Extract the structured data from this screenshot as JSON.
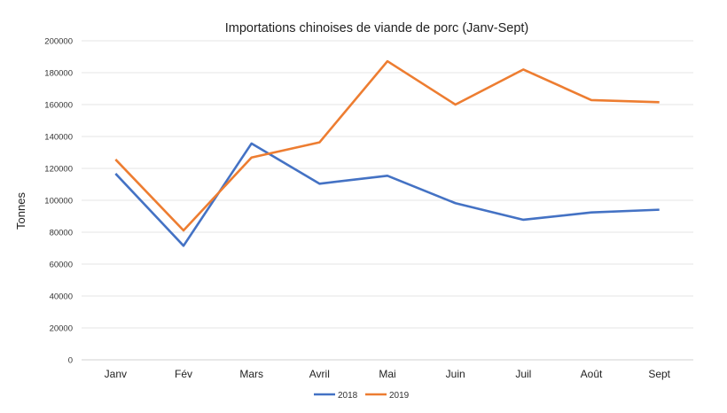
{
  "chart_data": {
    "type": "line",
    "title": "Importations chinoises de viande de porc (Janv-Sept)",
    "xlabel": "",
    "ylabel": "Tonnes",
    "ylim": [
      0,
      200000
    ],
    "yticks": [
      0,
      20000,
      40000,
      60000,
      80000,
      100000,
      120000,
      140000,
      160000,
      180000,
      200000
    ],
    "grid": true,
    "legend_position": "bottom",
    "categories": [
      "Janv",
      "Fév",
      "Mars",
      "Avril",
      "Mai",
      "Juin",
      "Juil",
      "Août",
      "Sept"
    ],
    "series": [
      {
        "name": "2018",
        "color": "#4472c4",
        "values": [
          116700,
          71500,
          135600,
          110400,
          115400,
          98200,
          87800,
          92400,
          94100
        ]
      },
      {
        "name": "2019",
        "color": "#ed7d31",
        "values": [
          125600,
          81100,
          126800,
          136300,
          187200,
          160000,
          182000,
          162800,
          161500
        ]
      }
    ]
  }
}
